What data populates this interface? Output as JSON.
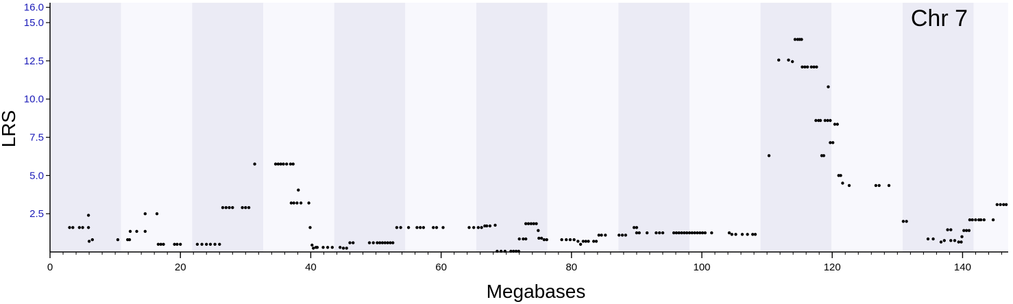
{
  "chart_data": {
    "type": "scatter",
    "chromosome_label": "Chr 7",
    "xlabel": "Megabases",
    "ylabel": "LRS",
    "xlim": [
      0,
      147
    ],
    "ylim": [
      0,
      16.3
    ],
    "x_ticks": [
      0,
      20,
      40,
      60,
      80,
      100,
      120,
      140
    ],
    "x_minor_step": 2,
    "y_ticks": [
      2.5,
      5.0,
      7.5,
      10.0,
      12.5,
      15.0,
      16.0
    ],
    "band_color": "#ebebf5",
    "band_alt_color": "#f8f8fd",
    "band_edges": [
      0,
      10.9,
      21.8,
      32.7,
      43.6,
      54.5,
      65.4,
      76.3,
      87.2,
      98.1,
      109.0,
      119.9,
      130.8,
      141.7
    ],
    "point_color": "#000000",
    "tick_label_color": "#1a1ab8",
    "points": [
      [
        3.0,
        1.6
      ],
      [
        3.5,
        1.6
      ],
      [
        4.5,
        1.6
      ],
      [
        5.0,
        1.6
      ],
      [
        5.9,
        1.6
      ],
      [
        5.9,
        2.4
      ],
      [
        6.0,
        0.7
      ],
      [
        6.5,
        0.8
      ],
      [
        10.4,
        0.8
      ],
      [
        11.9,
        0.8
      ],
      [
        12.2,
        0.8
      ],
      [
        12.3,
        1.35
      ],
      [
        13.3,
        1.35
      ],
      [
        14.6,
        1.35
      ],
      [
        14.6,
        2.5
      ],
      [
        16.4,
        2.5
      ],
      [
        16.6,
        0.5
      ],
      [
        17.0,
        0.5
      ],
      [
        17.4,
        0.5
      ],
      [
        19.1,
        0.5
      ],
      [
        19.5,
        0.5
      ],
      [
        20.0,
        0.5
      ],
      [
        22.6,
        0.5
      ],
      [
        23.3,
        0.5
      ],
      [
        24.0,
        0.5
      ],
      [
        24.6,
        0.5
      ],
      [
        25.3,
        0.5
      ],
      [
        26.0,
        0.5
      ],
      [
        26.5,
        2.9
      ],
      [
        27.0,
        2.9
      ],
      [
        27.5,
        2.9
      ],
      [
        28.0,
        2.9
      ],
      [
        29.5,
        2.9
      ],
      [
        30.0,
        2.9
      ],
      [
        30.5,
        2.9
      ],
      [
        31.4,
        5.75
      ],
      [
        34.6,
        5.75
      ],
      [
        35.0,
        5.75
      ],
      [
        35.4,
        5.75
      ],
      [
        35.8,
        5.75
      ],
      [
        36.3,
        5.75
      ],
      [
        36.9,
        5.75
      ],
      [
        37.3,
        5.75
      ],
      [
        37.0,
        3.2
      ],
      [
        37.4,
        3.2
      ],
      [
        37.9,
        3.2
      ],
      [
        38.1,
        4.05
      ],
      [
        38.5,
        3.2
      ],
      [
        39.7,
        3.2
      ],
      [
        39.9,
        1.6
      ],
      [
        40.2,
        0.45
      ],
      [
        40.4,
        0.25
      ],
      [
        40.8,
        0.3
      ],
      [
        41.0,
        0.3
      ],
      [
        41.9,
        0.3
      ],
      [
        42.6,
        0.3
      ],
      [
        43.3,
        0.3
      ],
      [
        44.5,
        0.3
      ],
      [
        45.0,
        0.25
      ],
      [
        45.5,
        0.25
      ],
      [
        46.0,
        0.6
      ],
      [
        46.5,
        0.6
      ],
      [
        49.0,
        0.6
      ],
      [
        49.6,
        0.6
      ],
      [
        50.2,
        0.6
      ],
      [
        50.6,
        0.6
      ],
      [
        51.0,
        0.6
      ],
      [
        51.4,
        0.6
      ],
      [
        51.8,
        0.6
      ],
      [
        52.2,
        0.6
      ],
      [
        52.6,
        0.6
      ],
      [
        53.2,
        1.6
      ],
      [
        53.8,
        1.6
      ],
      [
        55.0,
        1.6
      ],
      [
        56.3,
        1.6
      ],
      [
        56.8,
        1.6
      ],
      [
        57.3,
        1.6
      ],
      [
        58.8,
        1.6
      ],
      [
        59.3,
        1.6
      ],
      [
        60.3,
        1.6
      ],
      [
        64.3,
        1.6
      ],
      [
        65.0,
        1.6
      ],
      [
        65.7,
        1.6
      ],
      [
        66.2,
        1.6
      ],
      [
        66.7,
        1.7
      ],
      [
        67.0,
        1.7
      ],
      [
        67.5,
        1.7
      ],
      [
        68.3,
        1.75
      ],
      [
        68.6,
        0.05
      ],
      [
        69.2,
        0.05
      ],
      [
        69.8,
        0.05
      ],
      [
        70.7,
        0.05
      ],
      [
        71.1,
        0.05
      ],
      [
        71.5,
        0.05
      ],
      [
        71.9,
        0.05
      ],
      [
        72.0,
        0.85
      ],
      [
        72.6,
        0.85
      ],
      [
        73.0,
        0.85
      ],
      [
        73.0,
        1.85
      ],
      [
        73.4,
        1.85
      ],
      [
        73.8,
        1.85
      ],
      [
        74.2,
        1.85
      ],
      [
        74.6,
        1.85
      ],
      [
        74.9,
        1.4
      ],
      [
        75.0,
        0.9
      ],
      [
        75.4,
        0.9
      ],
      [
        75.8,
        0.8
      ],
      [
        76.2,
        0.8
      ],
      [
        78.5,
        0.8
      ],
      [
        79.2,
        0.8
      ],
      [
        79.8,
        0.8
      ],
      [
        80.4,
        0.8
      ],
      [
        81.0,
        0.7
      ],
      [
        81.4,
        0.5
      ],
      [
        81.8,
        0.7
      ],
      [
        82.2,
        0.7
      ],
      [
        82.6,
        0.7
      ],
      [
        83.4,
        0.7
      ],
      [
        83.8,
        0.7
      ],
      [
        84.2,
        1.1
      ],
      [
        84.6,
        1.1
      ],
      [
        85.2,
        1.1
      ],
      [
        87.3,
        1.1
      ],
      [
        87.8,
        1.1
      ],
      [
        88.3,
        1.1
      ],
      [
        89.6,
        1.6
      ],
      [
        90.0,
        1.6
      ],
      [
        90.0,
        1.25
      ],
      [
        90.4,
        1.25
      ],
      [
        91.6,
        1.25
      ],
      [
        93.0,
        1.25
      ],
      [
        93.5,
        1.25
      ],
      [
        94.0,
        1.25
      ],
      [
        95.7,
        1.25
      ],
      [
        96.1,
        1.25
      ],
      [
        96.5,
        1.25
      ],
      [
        96.9,
        1.25
      ],
      [
        97.3,
        1.25
      ],
      [
        97.7,
        1.25
      ],
      [
        98.1,
        1.25
      ],
      [
        98.5,
        1.25
      ],
      [
        98.9,
        1.25
      ],
      [
        99.3,
        1.25
      ],
      [
        99.7,
        1.25
      ],
      [
        100.1,
        1.25
      ],
      [
        100.5,
        1.25
      ],
      [
        101.5,
        1.25
      ],
      [
        104.2,
        1.25
      ],
      [
        104.6,
        1.15
      ],
      [
        105.2,
        1.15
      ],
      [
        106.2,
        1.15
      ],
      [
        107.0,
        1.15
      ],
      [
        107.8,
        1.15
      ],
      [
        108.2,
        1.15
      ],
      [
        110.3,
        6.3
      ],
      [
        111.8,
        12.55
      ],
      [
        113.3,
        12.55
      ],
      [
        113.9,
        12.45
      ],
      [
        114.3,
        13.9
      ],
      [
        114.7,
        13.9
      ],
      [
        115.0,
        13.9
      ],
      [
        115.3,
        13.9
      ],
      [
        115.4,
        12.1
      ],
      [
        115.8,
        12.1
      ],
      [
        116.2,
        12.1
      ],
      [
        116.8,
        12.1
      ],
      [
        117.2,
        12.1
      ],
      [
        117.6,
        12.1
      ],
      [
        117.5,
        8.6
      ],
      [
        117.9,
        8.6
      ],
      [
        118.2,
        8.6
      ],
      [
        118.4,
        6.3
      ],
      [
        118.7,
        6.3
      ],
      [
        118.9,
        8.6
      ],
      [
        119.3,
        8.6
      ],
      [
        119.4,
        10.8
      ],
      [
        119.7,
        8.6
      ],
      [
        119.7,
        7.15
      ],
      [
        120.1,
        7.15
      ],
      [
        120.4,
        8.35
      ],
      [
        120.8,
        8.35
      ],
      [
        121.0,
        5.0
      ],
      [
        121.3,
        5.0
      ],
      [
        121.6,
        4.5
      ],
      [
        122.6,
        4.35
      ],
      [
        126.7,
        4.35
      ],
      [
        127.2,
        4.35
      ],
      [
        128.7,
        4.35
      ],
      [
        130.9,
        2.0
      ],
      [
        131.4,
        2.0
      ],
      [
        134.7,
        0.85
      ],
      [
        135.5,
        0.85
      ],
      [
        136.7,
        0.65
      ],
      [
        137.2,
        0.75
      ],
      [
        137.7,
        1.45
      ],
      [
        138.2,
        1.45
      ],
      [
        138.2,
        0.75
      ],
      [
        138.8,
        0.75
      ],
      [
        139.4,
        0.65
      ],
      [
        139.8,
        0.65
      ],
      [
        139.9,
        1.0
      ],
      [
        140.2,
        1.4
      ],
      [
        140.6,
        1.4
      ],
      [
        141.0,
        1.4
      ],
      [
        141.1,
        2.1
      ],
      [
        141.5,
        2.1
      ],
      [
        142.0,
        2.1
      ],
      [
        142.5,
        2.1
      ],
      [
        143.3,
        2.1
      ],
      [
        142.8,
        2.1
      ],
      [
        144.7,
        2.1
      ],
      [
        145.3,
        3.1
      ],
      [
        145.8,
        3.1
      ],
      [
        146.3,
        3.1
      ],
      [
        146.7,
        3.1
      ]
    ]
  }
}
